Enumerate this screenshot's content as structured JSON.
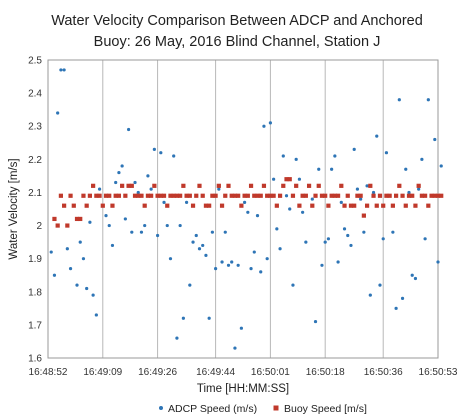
{
  "chart_data": {
    "type": "scatter",
    "title_lines": [
      "Water Velocity Comparison Between ADCP and Anchored",
      "Buoy: 26 May, 2016 Blind Channel, Station J"
    ],
    "xlabel": "Time [HH:MM:SS]",
    "ylabel": "Water Velocity [m/s]",
    "ylim": [
      1.6,
      2.5
    ],
    "xlim": [
      "16:48:52",
      "16:50:53"
    ],
    "x_ticks": [
      "16:48:52",
      "16:49:09",
      "16:49:26",
      "16:49:44",
      "16:50:01",
      "16:50:18",
      "16:50:36",
      "16:50:53"
    ],
    "y_ticks": [
      "1.6",
      "1.7",
      "1.8",
      "1.9",
      "2",
      "2.1",
      "2.2",
      "2.3",
      "2.4",
      "2.5"
    ],
    "grid": "vertical",
    "legend_position": "bottom",
    "series": [
      {
        "name": "ADCP Speed (m/s)",
        "color": "#2e75b6",
        "marker": "dot",
        "points": [
          [
            "16:48:53",
            1.92
          ],
          [
            "16:48:54",
            1.85
          ],
          [
            "16:48:55",
            2.34
          ],
          [
            "16:48:56",
            2.47
          ],
          [
            "16:48:57",
            2.47
          ],
          [
            "16:48:58",
            1.93
          ],
          [
            "16:48:59",
            1.87
          ],
          [
            "16:49:01",
            1.82
          ],
          [
            "16:49:02",
            1.95
          ],
          [
            "16:49:03",
            1.9
          ],
          [
            "16:49:04",
            1.81
          ],
          [
            "16:49:05",
            2.01
          ],
          [
            "16:49:06",
            1.79
          ],
          [
            "16:49:07",
            1.73
          ],
          [
            "16:49:08",
            2.11
          ],
          [
            "16:49:10",
            2.03
          ],
          [
            "16:49:11",
            2.0
          ],
          [
            "16:49:12",
            1.94
          ],
          [
            "16:49:13",
            2.13
          ],
          [
            "16:49:14",
            2.16
          ],
          [
            "16:49:15",
            2.18
          ],
          [
            "16:49:16",
            2.02
          ],
          [
            "16:49:17",
            2.29
          ],
          [
            "16:49:18",
            1.98
          ],
          [
            "16:49:19",
            2.13
          ],
          [
            "16:49:20",
            2.1
          ],
          [
            "16:49:21",
            1.98
          ],
          [
            "16:49:22",
            2.0
          ],
          [
            "16:49:23",
            2.15
          ],
          [
            "16:49:24",
            2.11
          ],
          [
            "16:49:25",
            2.23
          ],
          [
            "16:49:26",
            1.97
          ],
          [
            "16:49:27",
            2.22
          ],
          [
            "16:49:28",
            2.07
          ],
          [
            "16:49:29",
            2.0
          ],
          [
            "16:49:30",
            1.9
          ],
          [
            "16:49:31",
            2.21
          ],
          [
            "16:49:32",
            1.66
          ],
          [
            "16:49:33",
            2.0
          ],
          [
            "16:49:34",
            1.72
          ],
          [
            "16:49:35",
            2.07
          ],
          [
            "16:49:36",
            1.82
          ],
          [
            "16:49:37",
            1.95
          ],
          [
            "16:49:38",
            1.97
          ],
          [
            "16:49:39",
            1.93
          ],
          [
            "16:49:40",
            1.94
          ],
          [
            "16:49:41",
            1.91
          ],
          [
            "16:49:42",
            1.72
          ],
          [
            "16:49:43",
            1.98
          ],
          [
            "16:49:44",
            1.87
          ],
          [
            "16:49:45",
            2.11
          ],
          [
            "16:49:46",
            1.89
          ],
          [
            "16:49:47",
            1.98
          ],
          [
            "16:49:48",
            1.88
          ],
          [
            "16:49:49",
            1.89
          ],
          [
            "16:49:50",
            1.63
          ],
          [
            "16:49:51",
            1.88
          ],
          [
            "16:49:52",
            1.69
          ],
          [
            "16:49:53",
            2.07
          ],
          [
            "16:49:54",
            2.04
          ],
          [
            "16:49:55",
            1.87
          ],
          [
            "16:49:56",
            1.92
          ],
          [
            "16:49:57",
            2.03
          ],
          [
            "16:49:58",
            1.86
          ],
          [
            "16:49:59",
            2.3
          ],
          [
            "16:50:00",
            1.9
          ],
          [
            "16:50:01",
            2.31
          ],
          [
            "16:50:02",
            2.14
          ],
          [
            "16:50:03",
            1.99
          ],
          [
            "16:50:04",
            1.93
          ],
          [
            "16:50:05",
            2.21
          ],
          [
            "16:50:06",
            2.09
          ],
          [
            "16:50:07",
            2.05
          ],
          [
            "16:50:08",
            1.82
          ],
          [
            "16:50:09",
            2.2
          ],
          [
            "16:50:10",
            2.14
          ],
          [
            "16:50:11",
            2.04
          ],
          [
            "16:50:12",
            1.95
          ],
          [
            "16:50:13",
            2.12
          ],
          [
            "16:50:14",
            2.08
          ],
          [
            "16:50:15",
            1.71
          ],
          [
            "16:50:16",
            2.17
          ],
          [
            "16:50:17",
            1.88
          ],
          [
            "16:50:18",
            1.95
          ],
          [
            "16:50:19",
            1.96
          ],
          [
            "16:50:20",
            2.17
          ],
          [
            "16:50:21",
            2.21
          ],
          [
            "16:50:22",
            1.89
          ],
          [
            "16:50:23",
            2.07
          ],
          [
            "16:50:24",
            1.99
          ],
          [
            "16:50:25",
            1.97
          ],
          [
            "16:50:26",
            1.94
          ],
          [
            "16:50:27",
            2.23
          ],
          [
            "16:50:28",
            2.11
          ],
          [
            "16:50:29",
            2.08
          ],
          [
            "16:50:30",
            1.98
          ],
          [
            "16:50:31",
            2.12
          ],
          [
            "16:50:32",
            1.79
          ],
          [
            "16:50:33",
            2.1
          ],
          [
            "16:50:34",
            2.27
          ],
          [
            "16:50:35",
            1.82
          ],
          [
            "16:50:36",
            1.96
          ],
          [
            "16:50:37",
            2.22
          ],
          [
            "16:50:38",
            2.09
          ],
          [
            "16:50:39",
            1.98
          ],
          [
            "16:50:40",
            1.75
          ],
          [
            "16:50:41",
            2.38
          ],
          [
            "16:50:42",
            1.78
          ],
          [
            "16:50:43",
            2.17
          ],
          [
            "16:50:44",
            2.1
          ],
          [
            "16:50:45",
            1.85
          ],
          [
            "16:50:46",
            1.84
          ],
          [
            "16:50:47",
            2.11
          ],
          [
            "16:50:48",
            2.2
          ],
          [
            "16:50:49",
            1.96
          ],
          [
            "16:50:50",
            2.38
          ],
          [
            "16:50:51",
            2.09
          ],
          [
            "16:50:52",
            2.26
          ],
          [
            "16:50:53",
            1.89
          ],
          [
            "16:50:54",
            2.18
          ]
        ]
      },
      {
        "name": "Buoy Speed [m/s]",
        "color": "#c0392b",
        "marker": "square",
        "points": [
          [
            "16:48:54",
            2.02
          ],
          [
            "16:48:55",
            2.0
          ],
          [
            "16:48:56",
            2.09
          ],
          [
            "16:48:57",
            2.06
          ],
          [
            "16:48:58",
            2.0
          ],
          [
            "16:48:59",
            2.09
          ],
          [
            "16:49:00",
            2.06
          ],
          [
            "16:49:01",
            2.02
          ],
          [
            "16:49:02",
            2.02
          ],
          [
            "16:49:03",
            2.09
          ],
          [
            "16:49:04",
            2.06
          ],
          [
            "16:49:05",
            2.09
          ],
          [
            "16:49:06",
            2.12
          ],
          [
            "16:49:07",
            2.09
          ],
          [
            "16:49:08",
            2.09
          ],
          [
            "16:49:09",
            2.06
          ],
          [
            "16:49:10",
            2.09
          ],
          [
            "16:49:11",
            2.09
          ],
          [
            "16:49:12",
            2.06
          ],
          [
            "16:49:13",
            2.09
          ],
          [
            "16:49:14",
            2.09
          ],
          [
            "16:49:15",
            2.12
          ],
          [
            "16:49:16",
            2.09
          ],
          [
            "16:49:17",
            2.12
          ],
          [
            "16:49:18",
            2.12
          ],
          [
            "16:49:19",
            2.09
          ],
          [
            "16:49:20",
            2.09
          ],
          [
            "16:49:21",
            2.09
          ],
          [
            "16:49:22",
            2.06
          ],
          [
            "16:49:23",
            2.09
          ],
          [
            "16:49:24",
            2.09
          ],
          [
            "16:49:25",
            2.12
          ],
          [
            "16:49:26",
            2.09
          ],
          [
            "16:49:27",
            2.09
          ],
          [
            "16:49:28",
            2.09
          ],
          [
            "16:49:29",
            2.06
          ],
          [
            "16:49:30",
            2.09
          ],
          [
            "16:49:31",
            2.09
          ],
          [
            "16:49:32",
            2.09
          ],
          [
            "16:49:33",
            2.09
          ],
          [
            "16:49:34",
            2.12
          ],
          [
            "16:49:35",
            2.09
          ],
          [
            "16:49:36",
            2.09
          ],
          [
            "16:49:37",
            2.06
          ],
          [
            "16:49:38",
            2.09
          ],
          [
            "16:49:39",
            2.12
          ],
          [
            "16:49:40",
            2.09
          ],
          [
            "16:49:41",
            2.06
          ],
          [
            "16:49:42",
            2.06
          ],
          [
            "16:49:43",
            2.09
          ],
          [
            "16:49:44",
            2.09
          ],
          [
            "16:49:45",
            2.12
          ],
          [
            "16:49:46",
            2.06
          ],
          [
            "16:49:47",
            2.09
          ],
          [
            "16:49:48",
            2.12
          ],
          [
            "16:49:49",
            2.09
          ],
          [
            "16:49:50",
            2.09
          ],
          [
            "16:49:51",
            2.09
          ],
          [
            "16:49:52",
            2.06
          ],
          [
            "16:49:53",
            2.09
          ],
          [
            "16:49:54",
            2.09
          ],
          [
            "16:49:55",
            2.12
          ],
          [
            "16:49:56",
            2.09
          ],
          [
            "16:49:57",
            2.09
          ],
          [
            "16:49:58",
            2.09
          ],
          [
            "16:49:59",
            2.12
          ],
          [
            "16:50:00",
            2.09
          ],
          [
            "16:50:01",
            2.09
          ],
          [
            "16:50:02",
            2.09
          ],
          [
            "16:50:03",
            2.06
          ],
          [
            "16:50:04",
            2.09
          ],
          [
            "16:50:05",
            2.12
          ],
          [
            "16:50:06",
            2.14
          ],
          [
            "16:50:07",
            2.14
          ],
          [
            "16:50:08",
            2.09
          ],
          [
            "16:50:09",
            2.12
          ],
          [
            "16:50:10",
            2.06
          ],
          [
            "16:50:11",
            2.09
          ],
          [
            "16:50:12",
            2.09
          ],
          [
            "16:50:13",
            2.12
          ],
          [
            "16:50:14",
            2.06
          ],
          [
            "16:50:15",
            2.09
          ],
          [
            "16:50:16",
            2.12
          ],
          [
            "16:50:17",
            2.09
          ],
          [
            "16:50:18",
            2.09
          ],
          [
            "16:50:19",
            2.06
          ],
          [
            "16:50:20",
            2.09
          ],
          [
            "16:50:21",
            2.09
          ],
          [
            "16:50:22",
            2.09
          ],
          [
            "16:50:23",
            2.12
          ],
          [
            "16:50:24",
            2.06
          ],
          [
            "16:50:25",
            2.09
          ],
          [
            "16:50:26",
            2.06
          ],
          [
            "16:50:27",
            2.06
          ],
          [
            "16:50:28",
            2.09
          ],
          [
            "16:50:29",
            2.09
          ],
          [
            "16:50:30",
            2.03
          ],
          [
            "16:50:31",
            2.06
          ],
          [
            "16:50:32",
            2.12
          ],
          [
            "16:50:33",
            2.09
          ],
          [
            "16:50:34",
            2.06
          ],
          [
            "16:50:35",
            2.09
          ],
          [
            "16:50:36",
            2.06
          ],
          [
            "16:50:37",
            2.09
          ],
          [
            "16:50:38",
            2.09
          ],
          [
            "16:50:39",
            2.06
          ],
          [
            "16:50:40",
            2.09
          ],
          [
            "16:50:41",
            2.12
          ],
          [
            "16:50:42",
            2.09
          ],
          [
            "16:50:43",
            2.06
          ],
          [
            "16:50:44",
            2.09
          ],
          [
            "16:50:45",
            2.09
          ],
          [
            "16:50:46",
            2.06
          ],
          [
            "16:50:47",
            2.12
          ],
          [
            "16:50:48",
            2.09
          ],
          [
            "16:50:49",
            2.09
          ],
          [
            "16:50:50",
            2.06
          ],
          [
            "16:50:51",
            2.09
          ],
          [
            "16:50:52",
            2.09
          ],
          [
            "16:50:53",
            2.09
          ],
          [
            "16:50:54",
            2.09
          ]
        ]
      }
    ]
  }
}
